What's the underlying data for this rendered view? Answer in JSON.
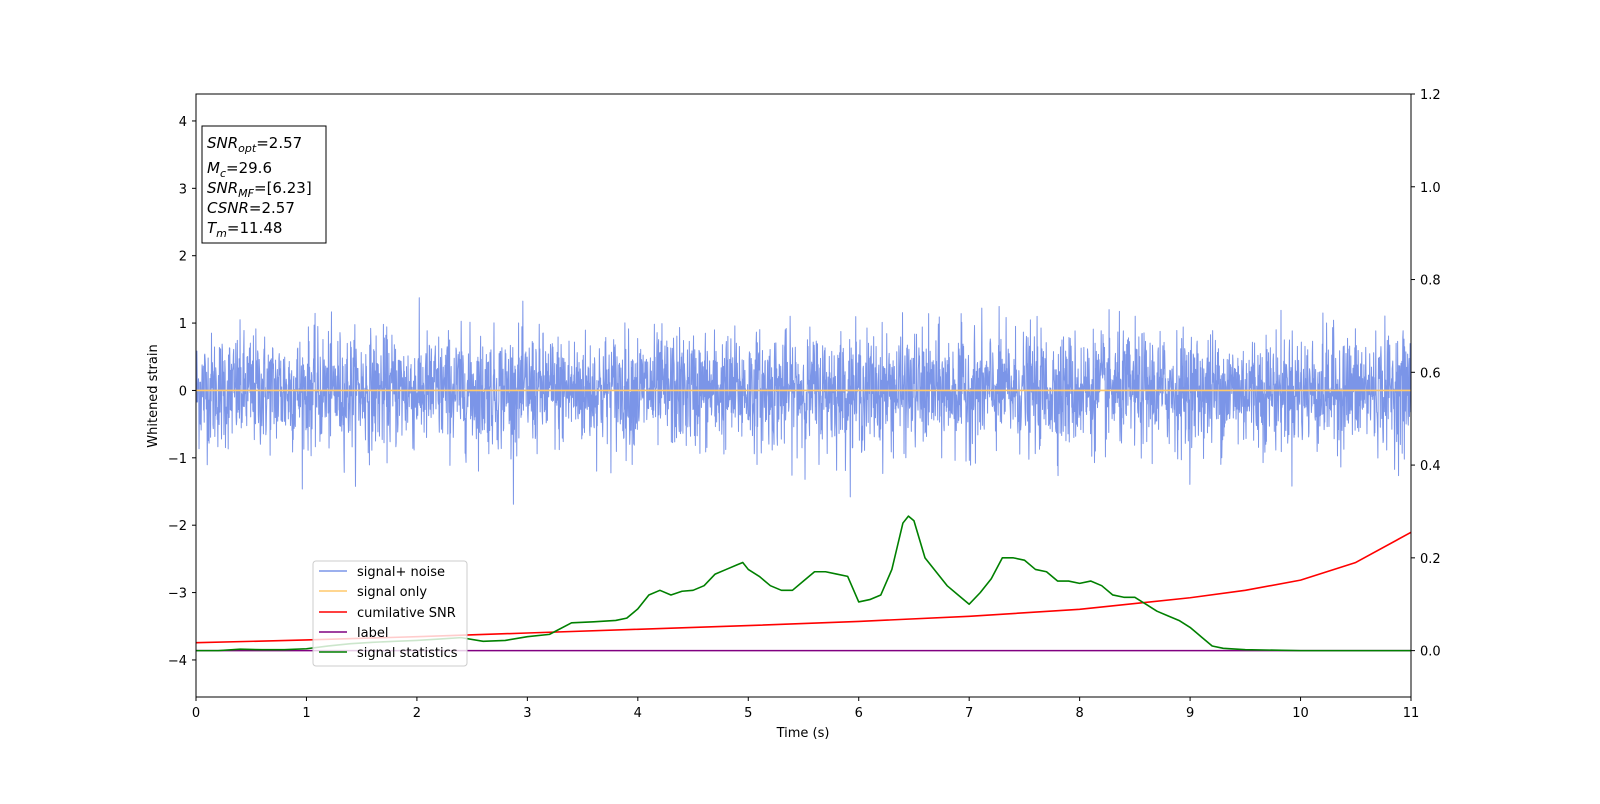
{
  "chart_data": {
    "type": "line",
    "xlabel": "Time (s)",
    "ylabel": "Whitened strain",
    "xlim": [
      0,
      11
    ],
    "ylim": [
      -4.55,
      4.4
    ],
    "ylim_right": [
      -0.1,
      1.2
    ],
    "x_ticks": [
      "0",
      "1",
      "2",
      "3",
      "4",
      "5",
      "6",
      "7",
      "8",
      "9",
      "10",
      "11"
    ],
    "y_ticks": [
      "4",
      "3",
      "2",
      "1",
      "0",
      "−1",
      "−2",
      "−3",
      "−4"
    ],
    "y_right_ticks": [
      "1.2",
      "1.0",
      "0.8",
      "0.6",
      "0.4",
      "0.2",
      "0.0"
    ],
    "grid": false,
    "legend_position": "lower-left",
    "colors": {
      "signal_noise": "#7b95e8",
      "signal_only": "#ffc96b",
      "cumulative_snr": "#ff0000",
      "label": "#800080",
      "signal_statistics": "#008000"
    },
    "info_box": {
      "lines": [
        {
          "base": "SNR",
          "sub": "opt",
          "value": "=2.57"
        },
        {
          "base": "M",
          "sub": "c",
          "value": "=29.6"
        },
        {
          "base": "SNR",
          "sub": "MF",
          "value": "=[6.23]"
        },
        {
          "base": "CSNR",
          "sub": "",
          "value": "=2.57"
        },
        {
          "base": "T",
          "sub": "m",
          "value": "=11.48"
        }
      ]
    },
    "series": [
      {
        "name": "signal+ noise",
        "axis": "left",
        "noise": {
          "sigma": 0.42,
          "max_abs": 1.9,
          "x_range": [
            0,
            11
          ]
        }
      },
      {
        "name": "signal only",
        "axis": "left",
        "x": [
          0,
          11
        ],
        "values": [
          0,
          0
        ]
      },
      {
        "name": "cumilative SNR",
        "axis": "right",
        "x": [
          0,
          1,
          2,
          3,
          4,
          5,
          6,
          7,
          8,
          9,
          9.5,
          10,
          10.5,
          11
        ],
        "values": [
          0.017,
          0.023,
          0.03,
          0.038,
          0.046,
          0.054,
          0.063,
          0.074,
          0.089,
          0.114,
          0.13,
          0.152,
          0.19,
          0.255
        ]
      },
      {
        "name": "label",
        "axis": "right",
        "x": [
          0,
          11
        ],
        "values": [
          0,
          0
        ]
      },
      {
        "name": "signal statistics",
        "axis": "right",
        "x": [
          0,
          0.2,
          0.4,
          0.6,
          0.8,
          1.0,
          1.2,
          1.4,
          1.6,
          1.8,
          2.0,
          2.2,
          2.4,
          2.6,
          2.8,
          3.0,
          3.2,
          3.4,
          3.6,
          3.8,
          3.9,
          4.0,
          4.1,
          4.2,
          4.3,
          4.4,
          4.5,
          4.6,
          4.7,
          4.8,
          4.9,
          4.95,
          5.0,
          5.1,
          5.2,
          5.3,
          5.4,
          5.5,
          5.6,
          5.7,
          5.8,
          5.9,
          6.0,
          6.1,
          6.2,
          6.3,
          6.35,
          6.4,
          6.45,
          6.5,
          6.6,
          6.7,
          6.8,
          6.9,
          7.0,
          7.1,
          7.2,
          7.3,
          7.4,
          7.5,
          7.6,
          7.7,
          7.8,
          7.9,
          8.0,
          8.1,
          8.2,
          8.3,
          8.4,
          8.5,
          8.6,
          8.7,
          8.8,
          8.9,
          9.0,
          9.1,
          9.2,
          9.3,
          9.5,
          10.0,
          10.5,
          11.0
        ],
        "values": [
          0.0,
          0.0,
          0.003,
          0.002,
          0.002,
          0.004,
          0.01,
          0.015,
          0.018,
          0.02,
          0.022,
          0.025,
          0.028,
          0.02,
          0.022,
          0.03,
          0.035,
          0.06,
          0.062,
          0.065,
          0.07,
          0.09,
          0.12,
          0.13,
          0.12,
          0.128,
          0.13,
          0.14,
          0.165,
          0.175,
          0.185,
          0.19,
          0.175,
          0.16,
          0.14,
          0.13,
          0.13,
          0.15,
          0.17,
          0.17,
          0.165,
          0.16,
          0.105,
          0.11,
          0.12,
          0.175,
          0.225,
          0.275,
          0.29,
          0.28,
          0.2,
          0.17,
          0.14,
          0.12,
          0.1,
          0.125,
          0.155,
          0.2,
          0.2,
          0.195,
          0.175,
          0.17,
          0.15,
          0.15,
          0.145,
          0.15,
          0.14,
          0.12,
          0.115,
          0.115,
          0.1,
          0.085,
          0.075,
          0.065,
          0.05,
          0.03,
          0.01,
          0.005,
          0.002,
          0.0,
          0.0,
          0.0
        ]
      }
    ]
  }
}
